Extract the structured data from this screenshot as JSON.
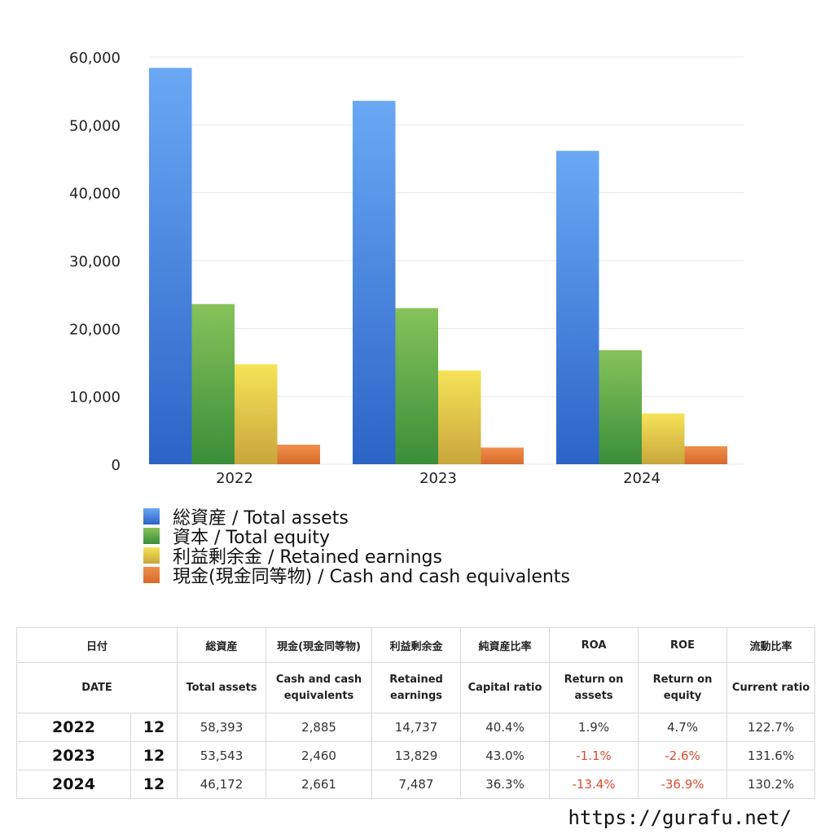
{
  "chart_data": {
    "type": "bar",
    "categories": [
      "2022",
      "2023",
      "2024"
    ],
    "series": [
      {
        "name": "総資産 / Total assets",
        "values": [
          58393,
          53543,
          46172
        ],
        "color": "#3d7fe0"
      },
      {
        "name": "資本 / Total equity",
        "values": [
          23600,
          23000,
          16800
        ],
        "color": "#5aab46"
      },
      {
        "name": "利益剰余金 / Retained earnings",
        "values": [
          14737,
          13829,
          7487
        ],
        "color": "#e8cf3c"
      },
      {
        "name": "現金(現金同等物) / Cash and cash equivalents",
        "values": [
          2885,
          2460,
          2661
        ],
        "color": "#e5793a"
      }
    ],
    "yticks": [
      "0",
      "10,000",
      "20,000",
      "30,000",
      "40,000",
      "50,000",
      "60,000"
    ],
    "ylim": [
      0,
      60000
    ],
    "grid": true,
    "legend_position": "bottom-left"
  },
  "table": {
    "header_jp": [
      "日付",
      "",
      "総資産",
      "現金(現金同等物)",
      "利益剰余金",
      "純資産比率",
      "ROA",
      "ROE",
      "流動比率"
    ],
    "header_en": [
      "DATE",
      "",
      "Total assets",
      "Cash and cash equivalents",
      "Retained earnings",
      "Capital ratio",
      "Return on assets",
      "Return on equity",
      "Current ratio"
    ],
    "rows": [
      {
        "year": "2022",
        "month": "12",
        "total_assets": "58,393",
        "cash": "2,885",
        "retained": "14,737",
        "capital_ratio": "40.4%",
        "roa": "1.9%",
        "roe": "4.7%",
        "current_ratio": "122.7%"
      },
      {
        "year": "2023",
        "month": "12",
        "total_assets": "53,543",
        "cash": "2,460",
        "retained": "13,829",
        "capital_ratio": "43.0%",
        "roa": "-1.1%",
        "roe": "-2.6%",
        "current_ratio": "131.6%"
      },
      {
        "year": "2024",
        "month": "12",
        "total_assets": "46,172",
        "cash": "2,661",
        "retained": "7,487",
        "capital_ratio": "36.3%",
        "roa": "-13.4%",
        "roe": "-36.9%",
        "current_ratio": "130.2%"
      }
    ]
  },
  "footer": {
    "url": "https://gurafu.net/"
  },
  "colors": {
    "negative": "#e04a2f",
    "grid": "#e8e8e8"
  }
}
